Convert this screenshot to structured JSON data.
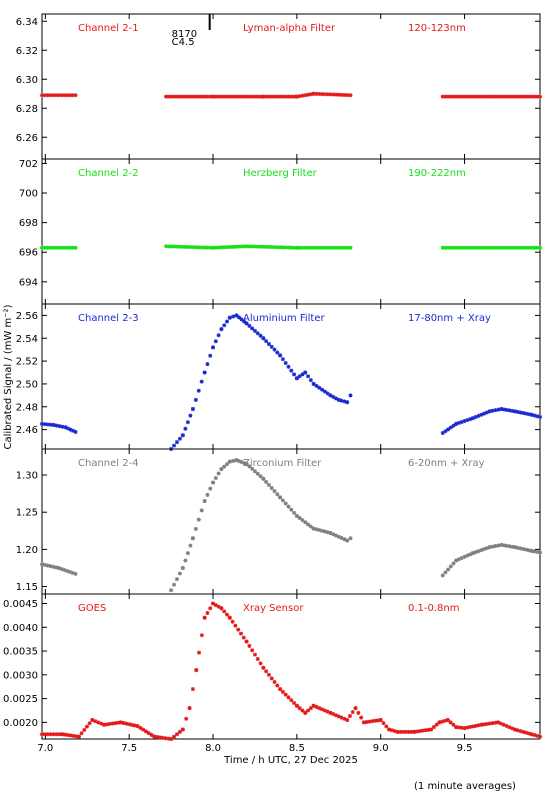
{
  "x_axis": {
    "label": "Time / h UTC, 27 Dec 2025",
    "range": [
      6.98,
      9.95
    ],
    "ticks": [
      7.0,
      7.5,
      8.0,
      8.5,
      9.0,
      9.5
    ],
    "tick_labels": [
      "7.0",
      "7.5",
      "8.0",
      "8.5",
      "9.0",
      "9.5"
    ]
  },
  "y_axis_label": "Calibrated Signal / (mW m⁻²)",
  "footnote": "(1 minute averages)",
  "colors": {
    "red": "#e41a1a",
    "green": "#16e016",
    "blue": "#1a2ad0",
    "gray": "#7f7f7f",
    "axes": "#000000"
  },
  "annotation": {
    "line1": "8170",
    "line2": "C4.5",
    "x": 7.98
  },
  "chart_data": [
    {
      "type": "scatter",
      "series": [
        {
          "name": "Channel 2-1"
        }
      ],
      "labels": [
        "Channel 2-1",
        "Lyman-alpha Filter",
        "120-123nm"
      ],
      "color": "#e41a1a",
      "ylim": [
        6.245,
        6.345
      ],
      "y_ticks": [
        6.26,
        6.28,
        6.3,
        6.32,
        6.34
      ],
      "y_tick_labels": [
        "6.26",
        "6.28",
        "6.30",
        "6.32",
        "6.34"
      ],
      "segments": [
        {
          "x": [
            6.98,
            7.18
          ],
          "y": [
            6.289,
            6.289
          ]
        },
        {
          "x": [
            7.72,
            8.0,
            8.3,
            8.5,
            8.6,
            8.82
          ],
          "y": [
            6.288,
            6.288,
            6.288,
            6.288,
            6.29,
            6.289
          ]
        },
        {
          "x": [
            9.37,
            9.95
          ],
          "y": [
            6.288,
            6.288
          ]
        }
      ]
    },
    {
      "type": "scatter",
      "series": [
        {
          "name": "Channel 2-2"
        }
      ],
      "labels": [
        "Channel 2-2",
        "Herzberg Filter",
        "190-222nm"
      ],
      "color": "#16e016",
      "ylim": [
        692.5,
        702.3
      ],
      "y_ticks": [
        694,
        696,
        698,
        700,
        702
      ],
      "y_tick_labels": [
        "694",
        "696",
        "698",
        "700",
        "702"
      ],
      "segments": [
        {
          "x": [
            6.98,
            7.18
          ],
          "y": [
            696.3,
            696.3
          ]
        },
        {
          "x": [
            7.72,
            8.0,
            8.2,
            8.5,
            8.82
          ],
          "y": [
            696.4,
            696.3,
            696.4,
            696.3,
            696.3
          ]
        },
        {
          "x": [
            9.37,
            9.95
          ],
          "y": [
            696.3,
            696.3
          ]
        }
      ]
    },
    {
      "type": "scatter",
      "series": [
        {
          "name": "Channel 2-3"
        }
      ],
      "labels": [
        "Channel 2-3",
        "Aluminium Filter",
        "17-80nm + Xray"
      ],
      "color": "#1a2ad0",
      "ylim": [
        2.443,
        2.57
      ],
      "y_ticks": [
        2.46,
        2.48,
        2.5,
        2.52,
        2.54,
        2.56
      ],
      "y_tick_labels": [
        "2.46",
        "2.48",
        "2.50",
        "2.52",
        "2.54",
        "2.56"
      ],
      "segments": [
        {
          "x": [
            6.98,
            7.05,
            7.12,
            7.18
          ],
          "y": [
            2.465,
            2.464,
            2.462,
            2.458
          ]
        },
        {
          "x": [
            7.75,
            7.82,
            7.88,
            7.95,
            8.0,
            8.05,
            8.1,
            8.14,
            8.2,
            8.3,
            8.4,
            8.5,
            8.55,
            8.6,
            8.7,
            8.75,
            8.8,
            8.82
          ],
          "y": [
            2.443,
            2.455,
            2.478,
            2.51,
            2.532,
            2.548,
            2.558,
            2.56,
            2.553,
            2.54,
            2.525,
            2.505,
            2.51,
            2.5,
            2.49,
            2.486,
            2.484,
            2.49
          ]
        },
        {
          "x": [
            9.37,
            9.45,
            9.55,
            9.65,
            9.72,
            9.8,
            9.9,
            9.95
          ],
          "y": [
            2.457,
            2.465,
            2.47,
            2.476,
            2.478,
            2.476,
            2.473,
            2.471
          ]
        }
      ]
    },
    {
      "type": "scatter",
      "series": [
        {
          "name": "Channel 2-4"
        }
      ],
      "labels": [
        "Channel 2-4",
        "Zirconium Filter",
        "6-20nm + Xray"
      ],
      "color": "#7f7f7f",
      "ylim": [
        1.14,
        1.335
      ],
      "y_ticks": [
        1.15,
        1.2,
        1.25,
        1.3
      ],
      "y_tick_labels": [
        "1.15",
        "1.20",
        "1.25",
        "1.30"
      ],
      "segments": [
        {
          "x": [
            6.98,
            7.08,
            7.18
          ],
          "y": [
            1.18,
            1.175,
            1.167
          ]
        },
        {
          "x": [
            7.75,
            7.82,
            7.88,
            7.95,
            8.0,
            8.05,
            8.1,
            8.14,
            8.2,
            8.3,
            8.4,
            8.5,
            8.6,
            8.7,
            8.8,
            8.82
          ],
          "y": [
            1.145,
            1.175,
            1.215,
            1.265,
            1.29,
            1.308,
            1.318,
            1.32,
            1.315,
            1.295,
            1.27,
            1.245,
            1.228,
            1.222,
            1.212,
            1.215
          ]
        },
        {
          "x": [
            9.37,
            9.45,
            9.55,
            9.65,
            9.72,
            9.8,
            9.9,
            9.95
          ],
          "y": [
            1.165,
            1.185,
            1.195,
            1.203,
            1.206,
            1.203,
            1.198,
            1.196
          ]
        }
      ]
    },
    {
      "type": "scatter",
      "series": [
        {
          "name": "GOES"
        }
      ],
      "labels": [
        "GOES",
        "Xray Sensor",
        "0.1-0.8nm"
      ],
      "color": "#e41a1a",
      "ylim": [
        0.00165,
        0.0047
      ],
      "y_ticks": [
        0.002,
        0.0025,
        0.003,
        0.0035,
        0.004,
        0.0045
      ],
      "y_tick_labels": [
        "0.0020",
        "0.0025",
        "0.0030",
        "0.0035",
        "0.0040",
        "0.0045"
      ],
      "segments": [
        {
          "x": [
            6.98,
            7.1,
            7.2,
            7.28,
            7.35,
            7.45,
            7.55,
            7.65,
            7.75,
            7.82,
            7.86,
            7.9,
            7.95,
            8.0,
            8.05,
            8.1,
            8.2,
            8.3,
            8.4,
            8.5,
            8.55,
            8.6,
            8.7,
            8.8,
            8.85,
            8.9,
            9.0,
            9.05,
            9.1,
            9.2,
            9.3,
            9.35,
            9.4,
            9.45,
            9.5,
            9.6,
            9.7,
            9.8,
            9.9,
            9.95
          ],
          "y": [
            0.00175,
            0.00175,
            0.0017,
            0.00205,
            0.00195,
            0.002,
            0.00192,
            0.0017,
            0.00165,
            0.00185,
            0.0023,
            0.0031,
            0.0042,
            0.0045,
            0.0044,
            0.0042,
            0.0037,
            0.00315,
            0.0027,
            0.00235,
            0.0022,
            0.00235,
            0.0022,
            0.00205,
            0.0023,
            0.002,
            0.00205,
            0.00185,
            0.0018,
            0.0018,
            0.00185,
            0.002,
            0.00205,
            0.0019,
            0.00188,
            0.00195,
            0.002,
            0.00185,
            0.00175,
            0.0017
          ]
        }
      ]
    }
  ]
}
